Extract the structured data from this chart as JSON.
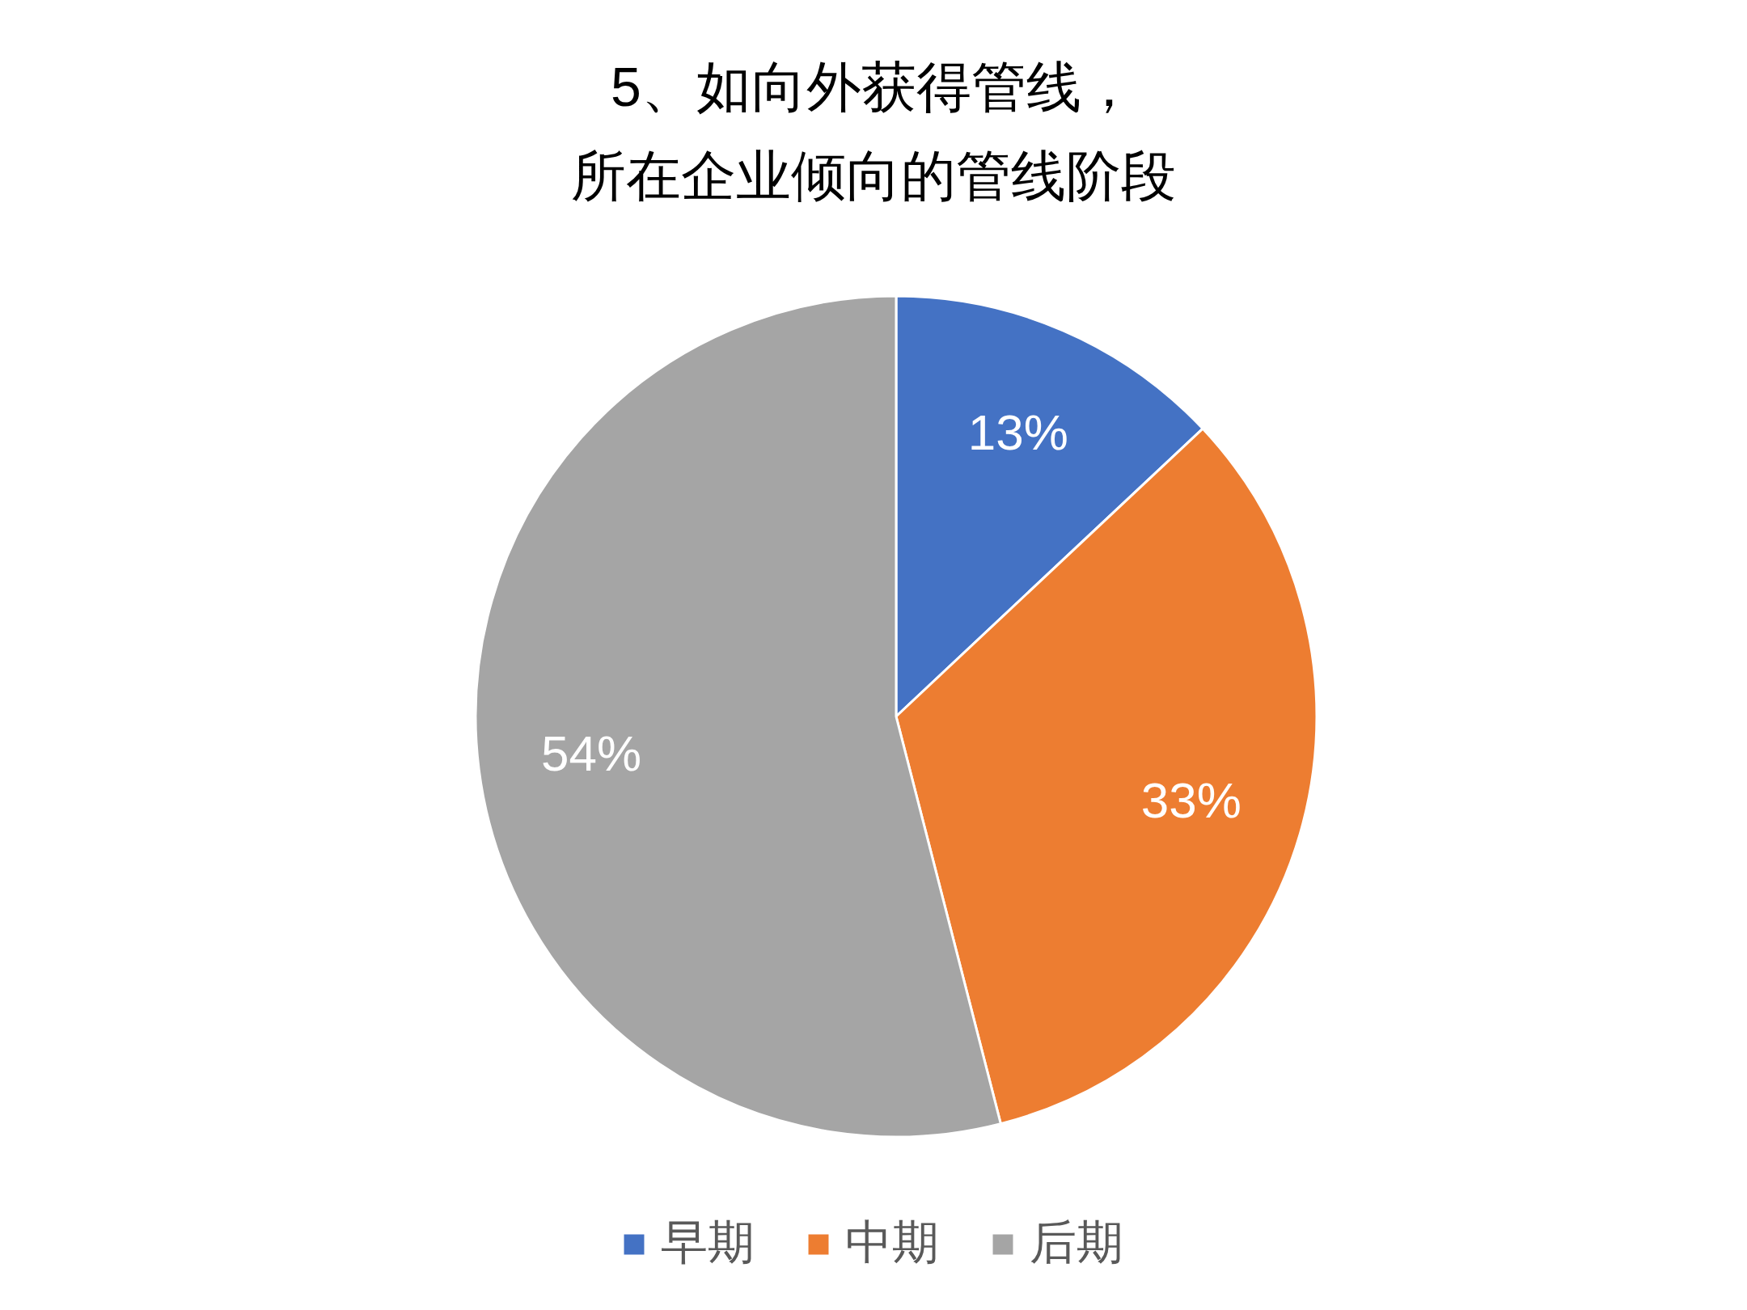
{
  "chart_data": {
    "type": "pie",
    "title": "5、如向外获得管线，所在企业倾向的管线阶段",
    "categories": [
      "早期",
      "中期",
      "后期"
    ],
    "values": [
      13,
      33,
      54
    ],
    "value_labels": [
      "13%",
      "33%",
      "54%"
    ],
    "colors": [
      "#4472c4",
      "#ed7d31",
      "#a5a5a5"
    ],
    "legend": "bottom"
  }
}
